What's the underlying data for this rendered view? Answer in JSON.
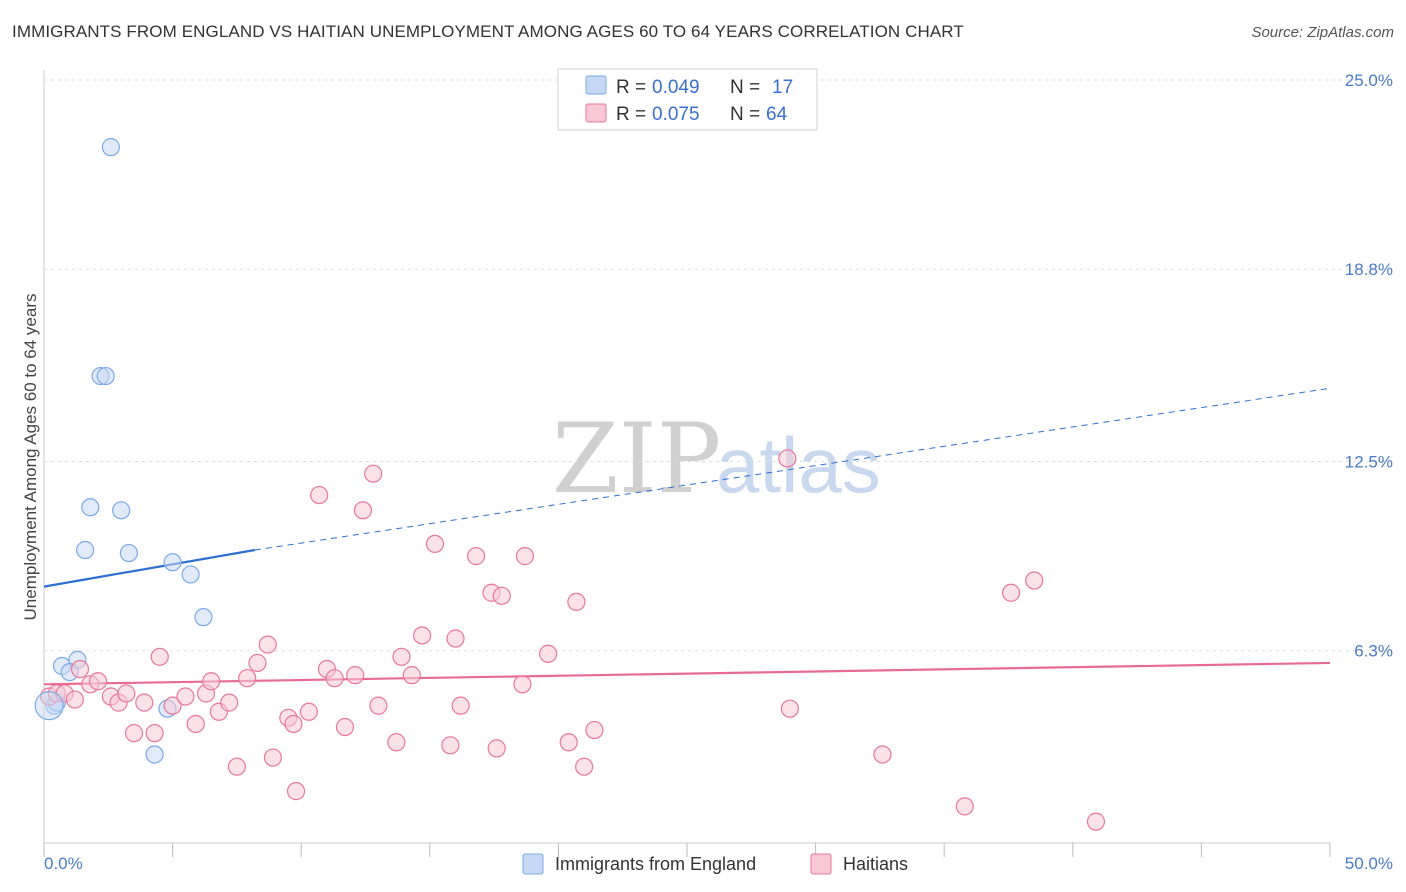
{
  "title": "IMMIGRANTS FROM ENGLAND VS HAITIAN UNEMPLOYMENT AMONG AGES 60 TO 64 YEARS CORRELATION CHART",
  "source": "Source: ZipAtlas.com",
  "watermark": {
    "zip": "ZIP",
    "atlas": "atlas"
  },
  "chart_data": {
    "type": "scatter",
    "title": "IMMIGRANTS FROM ENGLAND VS HAITIAN UNEMPLOYMENT AMONG AGES 60 TO 64 YEARS CORRELATION CHART",
    "xlabel": "",
    "ylabel": "Unemployment Among Ages 60 to 64 years",
    "xlim": [
      0,
      50
    ],
    "ylim": [
      0,
      25
    ],
    "x_tick_labels": {
      "min": "0.0%",
      "max": "50.0%"
    },
    "y_ticks": [
      {
        "value": 6.3,
        "label": "6.3%"
      },
      {
        "value": 12.5,
        "label": "12.5%"
      },
      {
        "value": 18.8,
        "label": "18.8%"
      },
      {
        "value": 25.0,
        "label": "25.0%"
      }
    ],
    "legend": {
      "r_label": "R =",
      "n_label": "N =",
      "entries": [
        {
          "r": "0.049",
          "n": "17"
        },
        {
          "r": "0.075",
          "n": "64"
        }
      ]
    },
    "series": [
      {
        "name": "Immigrants from England",
        "color": "#7aaae8",
        "fill": "#c6d9f4",
        "points": [
          [
            2.6,
            22.8
          ],
          [
            2.2,
            15.3
          ],
          [
            2.4,
            15.3
          ],
          [
            1.8,
            11.0
          ],
          [
            3.0,
            10.9
          ],
          [
            1.6,
            9.6
          ],
          [
            3.3,
            9.5
          ],
          [
            5.0,
            9.2
          ],
          [
            5.7,
            8.8
          ],
          [
            6.2,
            7.4
          ],
          [
            1.3,
            6.0
          ],
          [
            0.7,
            5.8
          ],
          [
            1.0,
            5.6
          ],
          [
            0.4,
            4.5
          ],
          [
            0.5,
            4.6
          ],
          [
            4.8,
            4.4
          ],
          [
            4.3,
            2.9
          ]
        ],
        "trend": {
          "x": [
            0,
            8.2
          ],
          "y": [
            8.4,
            9.6
          ],
          "dashed_to": [
            50,
            14.9
          ]
        }
      },
      {
        "name": "Haitians",
        "color": "#e8789c",
        "fill": "#f8c8d6",
        "points": [
          [
            0.2,
            4.8
          ],
          [
            0.5,
            4.9
          ],
          [
            0.8,
            4.9
          ],
          [
            1.2,
            4.7
          ],
          [
            1.4,
            5.7
          ],
          [
            1.8,
            5.2
          ],
          [
            2.1,
            5.3
          ],
          [
            2.6,
            4.8
          ],
          [
            2.9,
            4.6
          ],
          [
            3.2,
            4.9
          ],
          [
            3.5,
            3.6
          ],
          [
            3.9,
            4.6
          ],
          [
            4.3,
            3.6
          ],
          [
            4.5,
            6.1
          ],
          [
            5.0,
            4.5
          ],
          [
            5.5,
            4.8
          ],
          [
            5.9,
            3.9
          ],
          [
            6.3,
            4.9
          ],
          [
            6.5,
            5.3
          ],
          [
            6.8,
            4.3
          ],
          [
            7.2,
            4.6
          ],
          [
            7.5,
            2.5
          ],
          [
            7.9,
            5.4
          ],
          [
            8.3,
            5.9
          ],
          [
            8.7,
            6.5
          ],
          [
            8.9,
            2.8
          ],
          [
            9.5,
            4.1
          ],
          [
            9.7,
            3.9
          ],
          [
            9.8,
            1.7
          ],
          [
            10.3,
            4.3
          ],
          [
            10.7,
            11.4
          ],
          [
            11.0,
            5.7
          ],
          [
            11.3,
            5.4
          ],
          [
            11.7,
            3.8
          ],
          [
            12.1,
            5.5
          ],
          [
            12.4,
            10.9
          ],
          [
            12.8,
            12.1
          ],
          [
            13.0,
            4.5
          ],
          [
            13.7,
            3.3
          ],
          [
            13.9,
            6.1
          ],
          [
            14.3,
            5.5
          ],
          [
            14.7,
            6.8
          ],
          [
            15.2,
            9.8
          ],
          [
            15.8,
            3.2
          ],
          [
            16.0,
            6.7
          ],
          [
            16.2,
            4.5
          ],
          [
            16.8,
            9.4
          ],
          [
            17.4,
            8.2
          ],
          [
            17.8,
            8.1
          ],
          [
            17.6,
            3.1
          ],
          [
            18.6,
            5.2
          ],
          [
            18.7,
            9.4
          ],
          [
            19.6,
            6.2
          ],
          [
            20.4,
            3.3
          ],
          [
            20.7,
            7.9
          ],
          [
            21.0,
            2.5
          ],
          [
            21.4,
            3.7
          ],
          [
            28.9,
            12.6
          ],
          [
            29.0,
            4.4
          ],
          [
            32.6,
            2.9
          ],
          [
            35.8,
            1.2
          ],
          [
            37.6,
            8.2
          ],
          [
            38.5,
            8.6
          ],
          [
            40.9,
            0.7
          ]
        ],
        "trend": {
          "x": [
            0,
            50
          ],
          "y": [
            5.2,
            5.9
          ]
        }
      }
    ]
  }
}
